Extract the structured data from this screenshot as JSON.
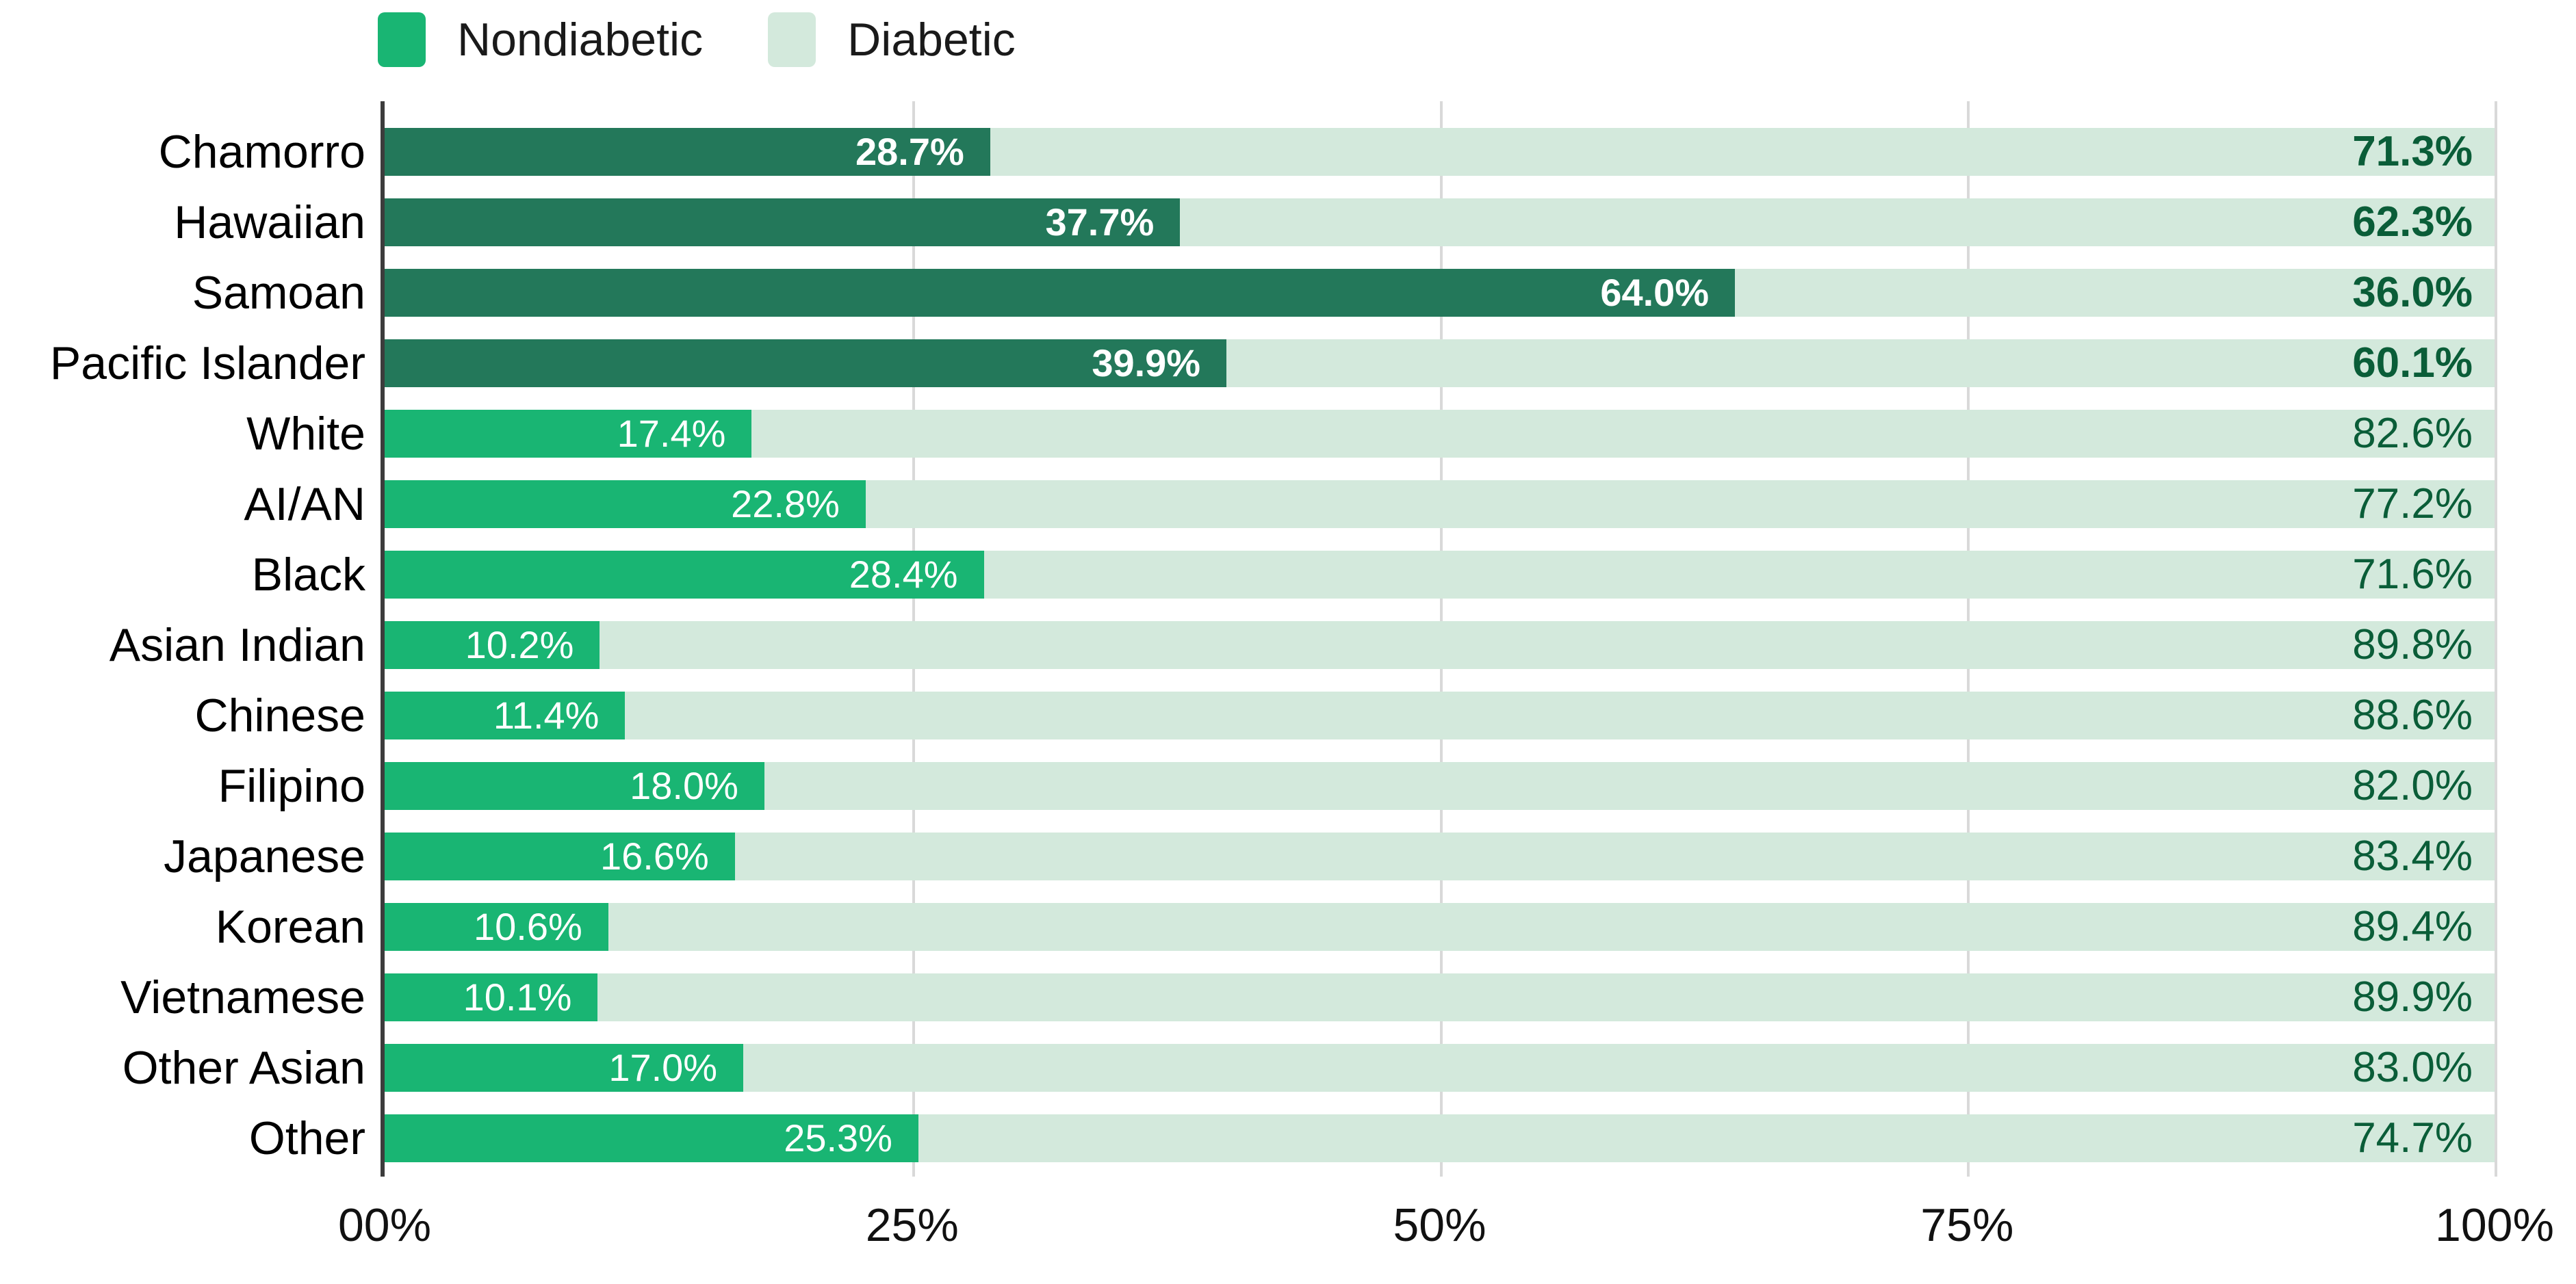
{
  "chart_data": {
    "type": "bar",
    "orientation": "horizontal",
    "stacked": true,
    "title": "",
    "categories": [
      "Chamorro",
      "Hawaiian",
      "Samoan",
      "Pacific Islander",
      "White",
      "AI/AN",
      "Black",
      "Asian Indian",
      "Chinese",
      "Filipino",
      "Japanese",
      "Korean",
      "Vietnamese",
      "Other Asian",
      "Other"
    ],
    "series": [
      {
        "name": "Nondiabetic",
        "values": [
          28.7,
          37.7,
          64.0,
          39.9,
          17.4,
          22.8,
          28.4,
          10.2,
          11.4,
          18.0,
          16.6,
          10.6,
          10.1,
          17.0,
          25.3
        ]
      },
      {
        "name": "Diabetic",
        "values": [
          71.3,
          62.3,
          36.0,
          60.1,
          82.6,
          77.2,
          71.6,
          89.8,
          88.6,
          82.0,
          83.4,
          89.4,
          89.9,
          83.0,
          74.7
        ]
      }
    ],
    "emphasized_categories": [
      "Chamorro",
      "Hawaiian",
      "Samoan",
      "Pacific Islander"
    ],
    "value_label_format": "one-decimal-percent",
    "x_axis": {
      "range": [
        0,
        100
      ],
      "tick_values": [
        0,
        25,
        50,
        75,
        100
      ],
      "tick_labels": [
        "00%",
        "25%",
        "50%",
        "75%",
        "100%"
      ]
    },
    "legend": {
      "position": "top-left",
      "entries": [
        "Nondiabetic",
        "Diabetic"
      ]
    },
    "grid": "vertical-only"
  },
  "colors": {
    "nondiabetic_bar": "#19B573",
    "nondiabetic_bar_emphasized": "#23785A",
    "diabetic_bar": "#D3E9DC",
    "inside_value_label": "#FFFFFF",
    "right_value_label": "#0A5D38",
    "axis_line": "#3C3C3C",
    "gridline": "#D9D9D9",
    "tick_text": "#111111",
    "background": "#FFFFFF"
  }
}
